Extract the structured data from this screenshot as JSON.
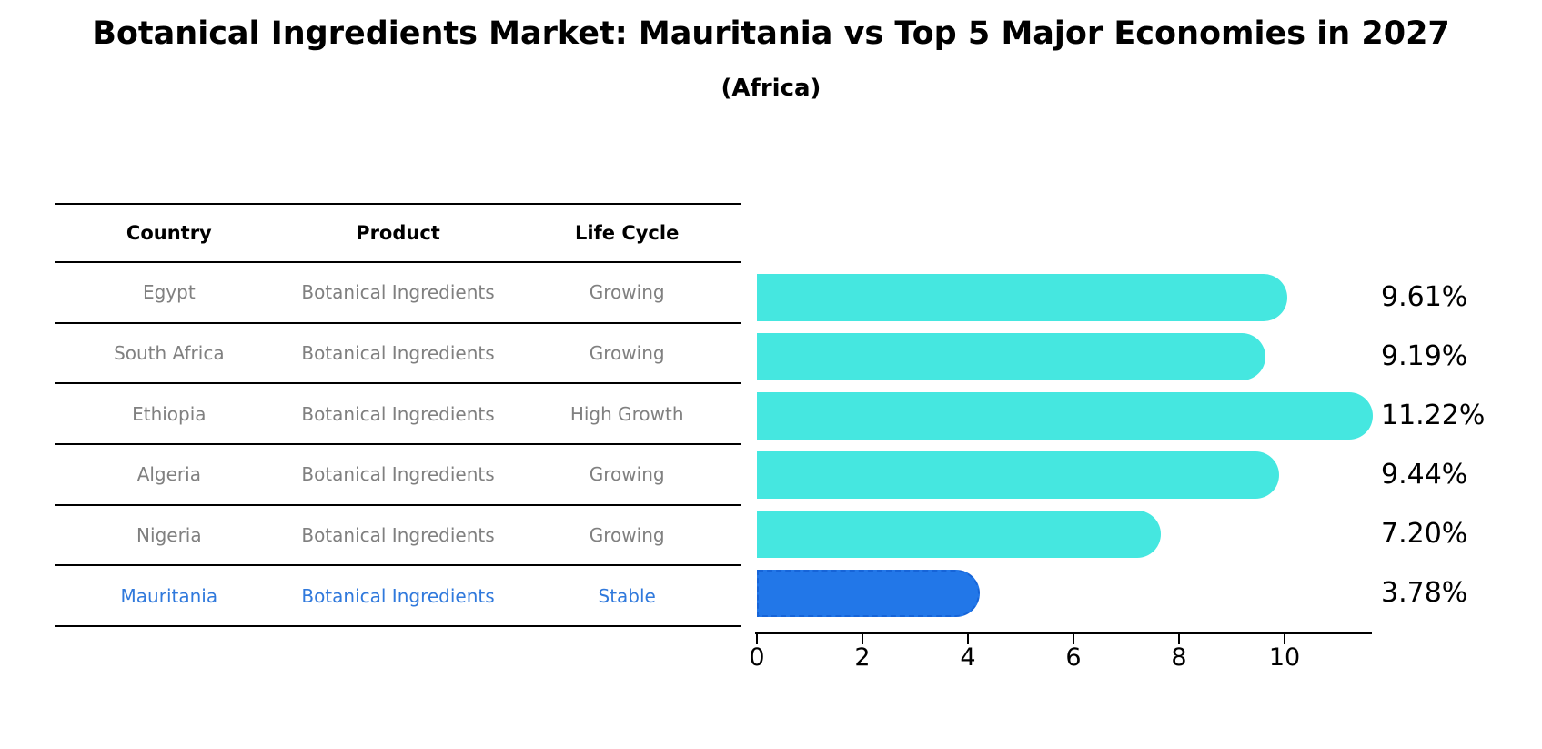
{
  "title": "Botanical Ingredients Market: Mauritania vs Top 5 Major Economies in 2027",
  "subtitle": "(Africa)",
  "table": {
    "headers": [
      "Country",
      "Product",
      "Life Cycle"
    ],
    "rows": [
      {
        "country": "Egypt",
        "product": "Botanical Ingredients",
        "life_cycle": "Growing",
        "highlight": false
      },
      {
        "country": "South Africa",
        "product": "Botanical Ingredients",
        "life_cycle": "Growing",
        "highlight": false
      },
      {
        "country": "Ethiopia",
        "product": "Botanical Ingredients",
        "life_cycle": "High Growth",
        "highlight": false
      },
      {
        "country": "Algeria",
        "product": "Botanical Ingredients",
        "life_cycle": "Growing",
        "highlight": false
      },
      {
        "country": "Nigeria",
        "product": "Botanical Ingredients",
        "life_cycle": "Growing",
        "highlight": false
      },
      {
        "country": "Mauritania",
        "product": "Botanical Ingredients",
        "life_cycle": "Stable",
        "highlight": true
      }
    ]
  },
  "chart_data": {
    "type": "bar",
    "orientation": "horizontal",
    "title": "Botanical Ingredients Market: Mauritania vs Top 5 Major Economies in 2027",
    "subtitle": "(Africa)",
    "categories": [
      "Egypt",
      "South Africa",
      "Ethiopia",
      "Algeria",
      "Nigeria",
      "Mauritania"
    ],
    "values": [
      9.61,
      9.19,
      11.22,
      9.44,
      7.2,
      3.78
    ],
    "value_labels": [
      "9.61%",
      "9.19%",
      "11.22%",
      "9.44%",
      "7.20%",
      "3.78%"
    ],
    "x_ticks": [
      0,
      2,
      4,
      6,
      8,
      10
    ],
    "xlim": [
      0,
      11.66
    ],
    "grid": false,
    "legend": "none",
    "highlight_category": "Mauritania",
    "colors": {
      "bar": "#45e7e0",
      "highlight_bar": "#2277e8",
      "highlight_border": "#1664d8",
      "highlight_text": "#3079dc",
      "row_text": "#808080",
      "axis": "#000000"
    }
  }
}
